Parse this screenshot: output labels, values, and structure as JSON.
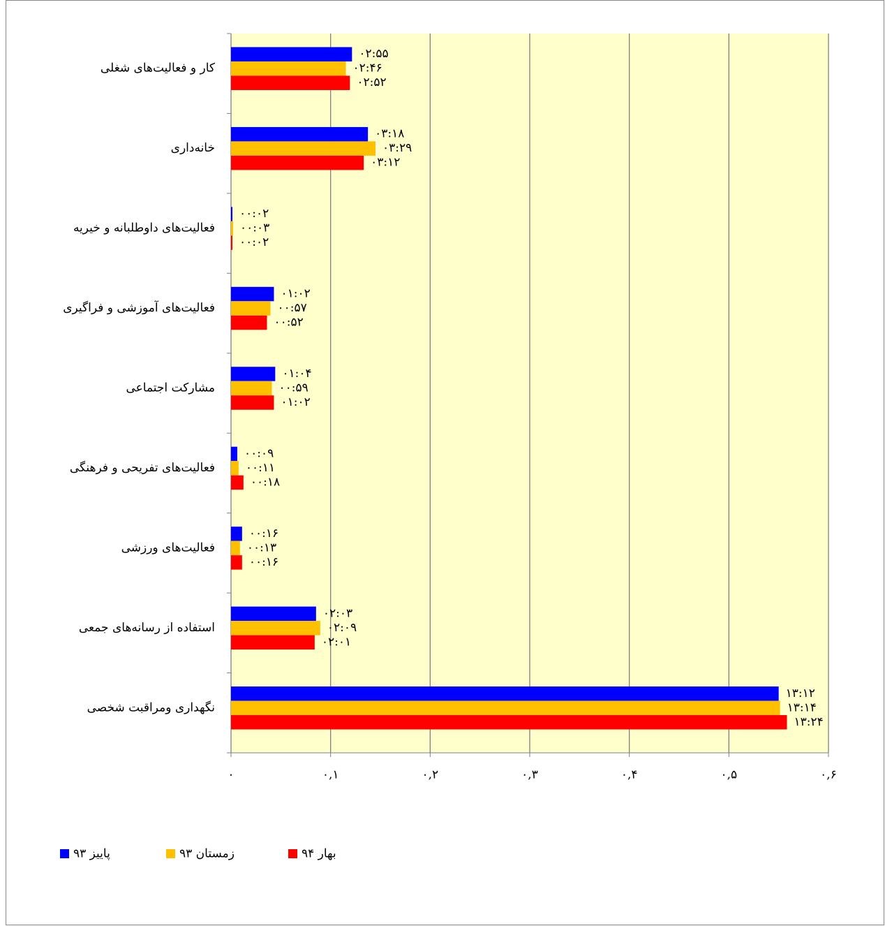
{
  "chart_data": {
    "type": "hbar",
    "categories": [
      "کار و فعالیت‌های شغلی",
      "خانه‌داری",
      "فعالیت‌های داوطلبانه و خیریه",
      "فعالیت‌های آموزشی و فراگیری",
      "مشارکت اجتماعی",
      "فعالیت‌های تفریحی و فرهنگی",
      "فعالیت‌های ورزشی",
      "استفاده از رسانه‌های جمعی",
      "نگهداری ومراقبت شخصی"
    ],
    "series": [
      {
        "name": "پاییز ۹۳",
        "color": "#0000ff",
        "values": [
          0.1215,
          0.1375,
          0.0014,
          0.0431,
          0.0444,
          0.0063,
          0.0111,
          0.0854,
          0.55
        ],
        "value_labels": [
          "۰۲:۵۵",
          "۰۳:۱۸",
          "۰۰:۰۲",
          "۰۱:۰۲",
          "۰۱:۰۴",
          "۰۰:۰۹",
          "۰۰:۱۶",
          "۰۲:۰۳",
          "۱۳:۱۲"
        ]
      },
      {
        "name": "زمستان ۹۳",
        "color": "#ffc000",
        "values": [
          0.1153,
          0.1451,
          0.0021,
          0.0396,
          0.041,
          0.0076,
          0.009,
          0.0896,
          0.5514
        ],
        "value_labels": [
          "۰۲:۴۶",
          "۰۳:۲۹",
          "۰۰:۰۳",
          "۰۰:۵۷",
          "۰۰:۵۹",
          "۰۰:۱۱",
          "۰۰:۱۳",
          "۰۲:۰۹",
          "۱۳:۱۴"
        ]
      },
      {
        "name": "بهار ۹۴",
        "color": "#ff0000",
        "values": [
          0.1194,
          0.1333,
          0.0014,
          0.0361,
          0.0431,
          0.0125,
          0.0111,
          0.084,
          0.5583
        ],
        "value_labels": [
          "۰۲:۵۲",
          "۰۳:۱۲",
          "۰۰:۰۲",
          "۰۰:۵۲",
          "۰۱:۰۲",
          "۰۰:۱۸",
          "۰۰:۱۶",
          "۰۲:۰۱",
          "۱۳:۲۴"
        ]
      }
    ],
    "xlim": [
      0,
      0.6
    ],
    "xticks": [
      {
        "value": 0,
        "label": "۰"
      },
      {
        "value": 0.1,
        "label": "۰,۱"
      },
      {
        "value": 0.2,
        "label": "۰,۲"
      },
      {
        "value": 0.3,
        "label": "۰,۳"
      },
      {
        "value": 0.4,
        "label": "۰,۴"
      },
      {
        "value": 0.5,
        "label": "۰,۵"
      },
      {
        "value": 0.6,
        "label": "۰,۶"
      }
    ],
    "grid": true,
    "legend": "bottom"
  }
}
